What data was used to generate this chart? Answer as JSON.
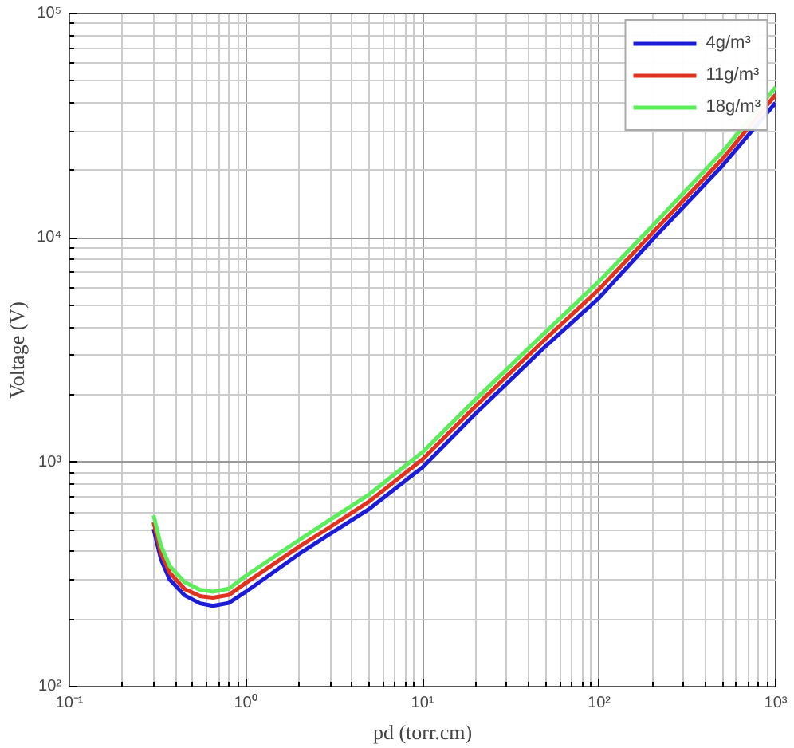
{
  "chart_data": {
    "type": "line",
    "xlabel": "pd (torr.cm)",
    "ylabel": "Voltage (V)",
    "x": [
      0.3,
      0.33,
      0.37,
      0.45,
      0.55,
      0.65,
      0.8,
      1,
      2,
      3,
      5,
      10,
      20,
      50,
      100,
      200,
      500,
      1000
    ],
    "series": [
      {
        "name": "4g/m³",
        "color": "#1c1cd8",
        "values": [
          505,
          370,
          300,
          255,
          235,
          229,
          236,
          265,
          390,
          480,
          620,
          950,
          1650,
          3300,
          5400,
          9800,
          21000,
          40000
        ]
      },
      {
        "name": "11g/m³",
        "color": "#e0321e",
        "values": [
          540,
          395,
          322,
          272,
          253,
          249,
          256,
          290,
          420,
          515,
          670,
          1030,
          1780,
          3560,
          5900,
          10500,
          22500,
          43500
        ]
      },
      {
        "name": "18g/m³",
        "color": "#5cec5c",
        "values": [
          580,
          425,
          345,
          292,
          270,
          265,
          273,
          312,
          450,
          555,
          720,
          1110,
          1910,
          3820,
          6400,
          11300,
          24200,
          47000
        ]
      }
    ],
    "xlim": [
      0.1,
      1000
    ],
    "ylim": [
      100,
      100000
    ],
    "xticks": [
      {
        "value": 0.1,
        "label": "10⁻¹"
      },
      {
        "value": 1,
        "label": "10⁰"
      },
      {
        "value": 10,
        "label": "10¹"
      },
      {
        "value": 100,
        "label": "10²"
      },
      {
        "value": 1000,
        "label": "10³"
      }
    ],
    "yticks": [
      {
        "value": 100,
        "label": "10²"
      },
      {
        "value": 1000,
        "label": "10³"
      },
      {
        "value": 10000,
        "label": "10⁴"
      },
      {
        "value": 100000,
        "label": "10⁵"
      }
    ],
    "log": "xy",
    "grid": true,
    "legend": "top right",
    "marker": "none",
    "line_style": "solid"
  }
}
